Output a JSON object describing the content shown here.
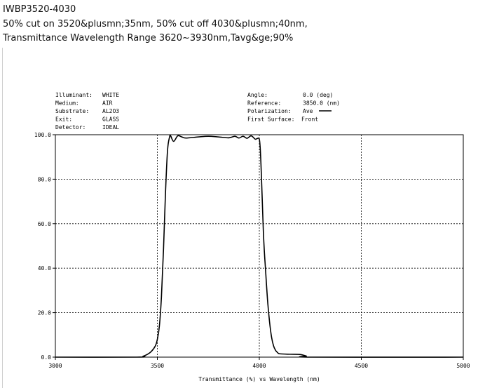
{
  "header": {
    "title": "IWBP3520-4030",
    "line2": "50% cut on 3520&plusmn;35nm, 50% cut off 4030&plusmn;40nm,",
    "line3": "Transmittance Wavelength Range 3620~3930nm,Tavg&ge;90%"
  },
  "info_left": [
    {
      "label": "Illuminant:",
      "value": "WHITE"
    },
    {
      "label": "Medium:",
      "value": "AIR"
    },
    {
      "label": "Substrate:",
      "value": "AL2O3"
    },
    {
      "label": "Exit:",
      "value": "GLASS"
    },
    {
      "label": "Detector:",
      "value": "IDEAL"
    }
  ],
  "info_right": [
    {
      "label": "Angle:",
      "value": "0.0 (deg)"
    },
    {
      "label": "Reference:",
      "value": "3850.0 (nm)"
    },
    {
      "label": "Polarization:",
      "value": "Ave"
    },
    {
      "label": "First Surface:",
      "value": "Front"
    }
  ],
  "chart_data": {
    "type": "line",
    "xlabel": "Transmittance (%)  vs  Wavelength (nm)",
    "ylabel": "",
    "xlim": [
      3000,
      5000
    ],
    "ylim": [
      0,
      100
    ],
    "x_ticks": [
      3000,
      3500,
      4000,
      4500,
      5000
    ],
    "y_ticks": [
      "0.0",
      "20.0",
      "40.0",
      "60.0",
      "80.0",
      "100.0"
    ],
    "grid": true,
    "line_color": "#000000",
    "series": [
      {
        "x": [
          3000,
          3400,
          3430,
          3450,
          3470,
          3490,
          3500,
          3510,
          3520,
          3530,
          3540,
          3550,
          3560,
          3565,
          3580,
          3600,
          3620,
          3640,
          3700,
          3750,
          3800,
          3850,
          3880,
          3900,
          3920,
          3940,
          3960,
          3980,
          3990,
          4000,
          4005,
          4010,
          4015,
          4020,
          4025,
          4030,
          4040,
          4050,
          4060,
          4070,
          4080,
          4090,
          4100,
          4150,
          4200,
          4230,
          4260,
          5000
        ],
        "y": [
          0,
          0,
          0.4,
          1.2,
          2.5,
          5,
          8,
          14,
          27,
          48,
          74,
          93,
          99,
          99.5,
          97,
          99.5,
          99,
          98.5,
          99,
          99.3,
          99,
          98.6,
          99.3,
          98.5,
          99.3,
          98.4,
          99.5,
          98,
          98.3,
          98,
          93,
          82,
          69,
          56,
          47,
          40,
          26,
          16,
          9,
          5,
          3,
          2,
          1.5,
          1.3,
          1.2,
          0.5,
          0,
          0
        ]
      }
    ]
  }
}
